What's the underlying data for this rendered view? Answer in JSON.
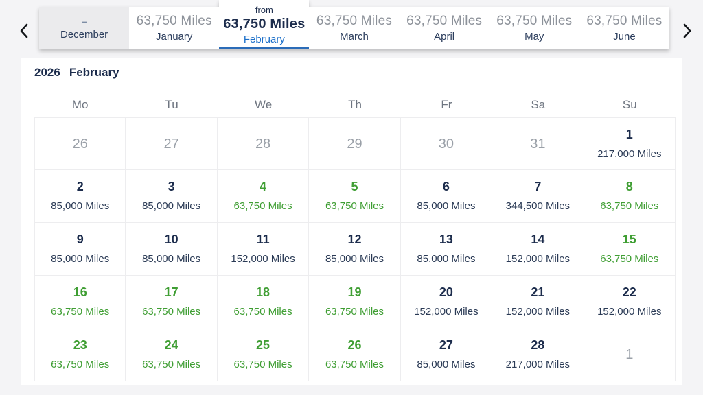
{
  "colors": {
    "accent_blue": "#1b6fc9",
    "underline_blue": "#2b6cb8",
    "saver_green": "#3f9e33",
    "navy_text": "#1c2c4c",
    "muted_grey": "#9aa0a8",
    "tab_disabled_bg": "#ebebed",
    "panel_bg": "#ffffff",
    "page_bg": "#f4f4f6"
  },
  "nav": {
    "prev_icon": "chevron-left",
    "next_icon": "chevron-right"
  },
  "month_tabs": [
    {
      "month": "December",
      "price": "–",
      "state": "disabled"
    },
    {
      "month": "January",
      "price": "63,750 Miles"
    },
    {
      "month": "February",
      "price": "63,750 Miles",
      "prefix": "from",
      "state": "selected"
    },
    {
      "month": "March",
      "price": "63,750 Miles"
    },
    {
      "month": "April",
      "price": "63,750 Miles"
    },
    {
      "month": "May",
      "price": "63,750 Miles"
    },
    {
      "month": "June",
      "price": "63,750 Miles"
    }
  ],
  "calendar": {
    "year": "2026",
    "month": "February",
    "weekdays": [
      "Mo",
      "Tu",
      "We",
      "Th",
      "Fr",
      "Sa",
      "Su"
    ],
    "cells": [
      {
        "day": "26",
        "type": "other"
      },
      {
        "day": "27",
        "type": "other"
      },
      {
        "day": "28",
        "type": "other"
      },
      {
        "day": "29",
        "type": "other"
      },
      {
        "day": "30",
        "type": "other"
      },
      {
        "day": "31",
        "type": "other"
      },
      {
        "day": "1",
        "miles": "217,000 Miles",
        "type": "standard"
      },
      {
        "day": "2",
        "miles": "85,000 Miles",
        "type": "standard"
      },
      {
        "day": "3",
        "miles": "85,000 Miles",
        "type": "standard"
      },
      {
        "day": "4",
        "miles": "63,750 Miles",
        "type": "saver"
      },
      {
        "day": "5",
        "miles": "63,750 Miles",
        "type": "saver"
      },
      {
        "day": "6",
        "miles": "85,000 Miles",
        "type": "standard"
      },
      {
        "day": "7",
        "miles": "344,500 Miles",
        "type": "standard"
      },
      {
        "day": "8",
        "miles": "63,750 Miles",
        "type": "saver"
      },
      {
        "day": "9",
        "miles": "85,000 Miles",
        "type": "standard"
      },
      {
        "day": "10",
        "miles": "85,000 Miles",
        "type": "standard"
      },
      {
        "day": "11",
        "miles": "152,000 Miles",
        "type": "standard"
      },
      {
        "day": "12",
        "miles": "85,000 Miles",
        "type": "standard"
      },
      {
        "day": "13",
        "miles": "85,000 Miles",
        "type": "standard"
      },
      {
        "day": "14",
        "miles": "152,000 Miles",
        "type": "standard"
      },
      {
        "day": "15",
        "miles": "63,750 Miles",
        "type": "saver"
      },
      {
        "day": "16",
        "miles": "63,750 Miles",
        "type": "saver"
      },
      {
        "day": "17",
        "miles": "63,750 Miles",
        "type": "saver"
      },
      {
        "day": "18",
        "miles": "63,750 Miles",
        "type": "saver"
      },
      {
        "day": "19",
        "miles": "63,750 Miles",
        "type": "saver"
      },
      {
        "day": "20",
        "miles": "152,000 Miles",
        "type": "standard"
      },
      {
        "day": "21",
        "miles": "152,000 Miles",
        "type": "standard"
      },
      {
        "day": "22",
        "miles": "152,000 Miles",
        "type": "standard"
      },
      {
        "day": "23",
        "miles": "63,750 Miles",
        "type": "saver"
      },
      {
        "day": "24",
        "miles": "63,750 Miles",
        "type": "saver"
      },
      {
        "day": "25",
        "miles": "63,750 Miles",
        "type": "saver"
      },
      {
        "day": "26",
        "miles": "63,750 Miles",
        "type": "saver"
      },
      {
        "day": "27",
        "miles": "85,000 Miles",
        "type": "standard"
      },
      {
        "day": "28",
        "miles": "217,000 Miles",
        "type": "standard"
      },
      {
        "day": "1",
        "type": "other"
      }
    ]
  }
}
